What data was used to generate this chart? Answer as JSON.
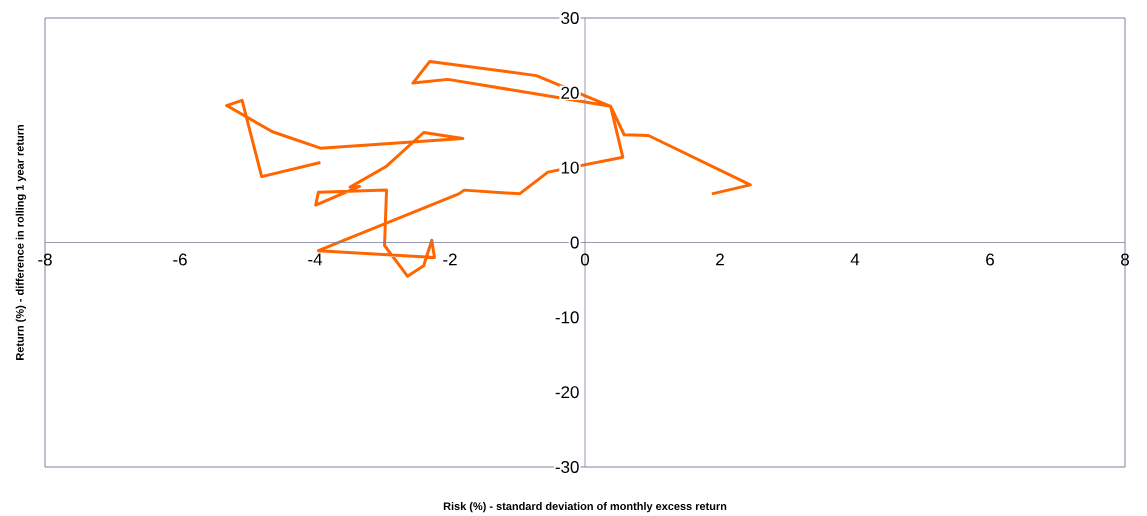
{
  "chart_data": {
    "type": "line",
    "xlabel": "Risk (%) - standard deviation of monthly excess return",
    "ylabel": "Return (%) - difference in rolling 1 year return",
    "x": [
      1.88,
      2.45,
      0.94,
      0.58,
      0.38,
      -0.72,
      -2.3,
      -2.55,
      -2.03,
      0.38,
      0.56,
      -0.55,
      -0.97,
      -1.79,
      -1.87,
      -3.95,
      -2.23,
      -2.27,
      -2.39,
      -2.63,
      -2.97,
      -2.94,
      -3.95,
      -3.99,
      -3.34,
      -3.48,
      -2.94,
      -2.39,
      -1.81,
      -3.92,
      -4.63,
      -5.31,
      -5.08,
      -4.79,
      -3.92
    ],
    "series": [
      {
        "color": "#ff6600",
        "values": [
          6.5,
          7.7,
          14.3,
          14.4,
          18.2,
          22.3,
          24.2,
          21.3,
          21.8,
          18.2,
          11.4,
          9.4,
          6.5,
          7.0,
          6.5,
          -1.1,
          -2.0,
          0.3,
          -3.1,
          -4.5,
          -0.4,
          7.0,
          6.7,
          5.0,
          7.5,
          7.4,
          10.2,
          14.7,
          13.9,
          12.6,
          14.8,
          18.3,
          19.0,
          8.8,
          10.7
        ]
      }
    ],
    "xlim": [
      -8,
      8
    ],
    "ylim": [
      -30,
      30
    ],
    "xticks": [
      -8,
      -6,
      -4,
      -2,
      0,
      2,
      4,
      6,
      8
    ],
    "yticks": [
      -30,
      -20,
      -10,
      0,
      10,
      20,
      30
    ],
    "grid": false,
    "marker": "none",
    "line_style": "solid"
  }
}
